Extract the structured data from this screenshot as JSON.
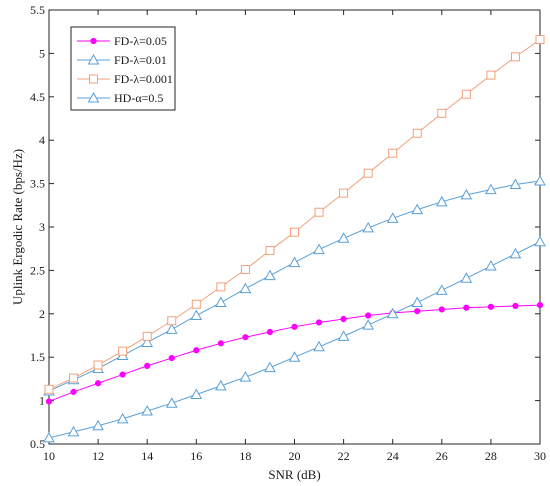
{
  "chart_data": {
    "type": "line",
    "title": "",
    "xlabel": "SNR (dB)",
    "ylabel": "Uplink Ergodic Rate (bps/Hz)",
    "xlim": [
      10,
      30
    ],
    "ylim": [
      0.5,
      5.5
    ],
    "xticks": [
      10,
      12,
      14,
      16,
      18,
      20,
      22,
      24,
      26,
      28,
      30
    ],
    "yticks": [
      0.5,
      1,
      1.5,
      2,
      2.5,
      3,
      3.5,
      4,
      4.5,
      5,
      5.5
    ],
    "ytick_labels": [
      "0.5",
      "1",
      "1.5",
      "2",
      "2.5",
      "3",
      "3.5",
      "4",
      "4.5",
      "5",
      "5.5"
    ],
    "grid": false,
    "legend_position": "top-left",
    "x": [
      10,
      11,
      12,
      13,
      14,
      15,
      16,
      17,
      18,
      19,
      20,
      21,
      22,
      23,
      24,
      25,
      26,
      27,
      28,
      29,
      30
    ],
    "series": [
      {
        "name": "FD-λ=0.05",
        "color": "#ff00ff",
        "marker": "dot",
        "values": [
          0.99,
          1.1,
          1.2,
          1.3,
          1.4,
          1.49,
          1.58,
          1.66,
          1.73,
          1.79,
          1.85,
          1.9,
          1.94,
          1.98,
          2.01,
          2.03,
          2.05,
          2.07,
          2.08,
          2.09,
          2.1
        ]
      },
      {
        "name": "FD-λ=0.01",
        "color": "#5aa0d8",
        "marker": "triangle",
        "values": [
          1.11,
          1.24,
          1.37,
          1.52,
          1.67,
          1.82,
          1.98,
          2.13,
          2.29,
          2.44,
          2.59,
          2.74,
          2.87,
          2.99,
          3.1,
          3.2,
          3.29,
          3.37,
          3.43,
          3.49,
          3.53
        ]
      },
      {
        "name": "FD-λ=0.001",
        "color": "#f4a07a",
        "marker": "square",
        "values": [
          1.13,
          1.26,
          1.41,
          1.57,
          1.74,
          1.92,
          2.11,
          2.31,
          2.51,
          2.73,
          2.94,
          3.17,
          3.39,
          3.62,
          3.85,
          4.08,
          4.31,
          4.53,
          4.75,
          4.96,
          5.16
        ]
      },
      {
        "name": "HD-α=0.5",
        "color": "#5aa0d8",
        "marker": "triangle",
        "values": [
          0.57,
          0.64,
          0.71,
          0.79,
          0.88,
          0.97,
          1.07,
          1.17,
          1.27,
          1.38,
          1.5,
          1.62,
          1.74,
          1.87,
          2.0,
          2.13,
          2.27,
          2.41,
          2.55,
          2.69,
          2.83
        ]
      }
    ]
  }
}
